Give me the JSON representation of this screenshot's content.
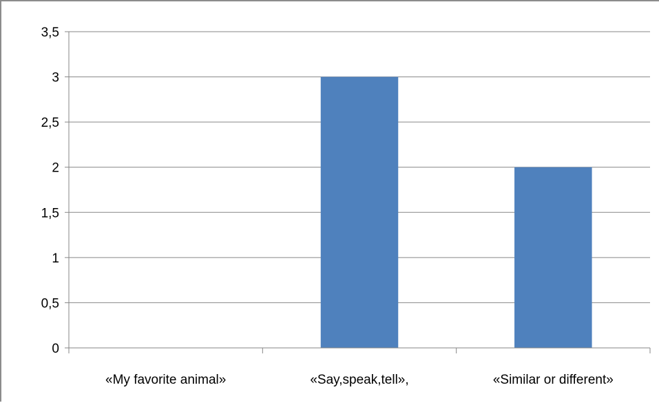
{
  "chart_data": {
    "type": "bar",
    "categories": [
      "«My favorite animal»",
      "«Say,speak,tell»,",
      "«Similar or different»"
    ],
    "values": [
      0,
      3,
      2
    ],
    "ylim": [
      0,
      3.5
    ],
    "yticks": [
      "0",
      "0,5",
      "1",
      "1,5",
      "2",
      "2,5",
      "3",
      "3,5"
    ],
    "grid": true,
    "legend": "none",
    "colors": {
      "bar": "#4f81bd",
      "grid": "#868686",
      "axis": "#868686"
    }
  }
}
